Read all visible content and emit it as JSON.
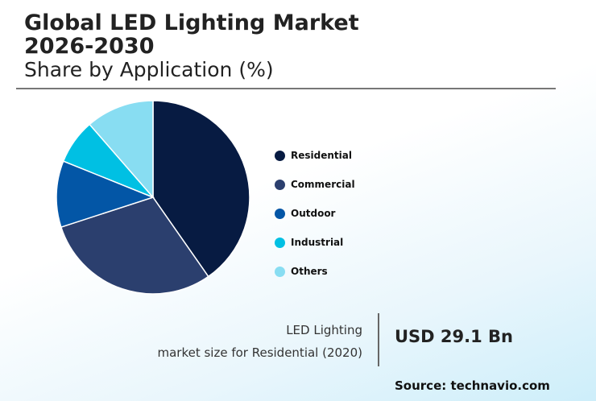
{
  "header": {
    "title_line1": "Global LED Lighting Market",
    "title_line2": "2026-2030",
    "subtitle": "Share by Application (%)"
  },
  "chart_data": {
    "type": "pie",
    "categories": [
      "Residential",
      "Commercial",
      "Outdoor",
      "Industrial",
      "Others"
    ],
    "values": [
      40.3,
      29.7,
      11.1,
      7.5,
      11.4
    ],
    "colors": [
      "#071b42",
      "#2b3f6e",
      "#0356a6",
      "#00c0e3",
      "#88ddf2"
    ],
    "start": "top",
    "direction": "clockwise",
    "legend_position": "right"
  },
  "callout": {
    "label_line1": "LED Lighting",
    "label_line2": "market size for Residential (2020)",
    "value": "USD 29.1 Bn"
  },
  "source": "Source: technavio.com"
}
